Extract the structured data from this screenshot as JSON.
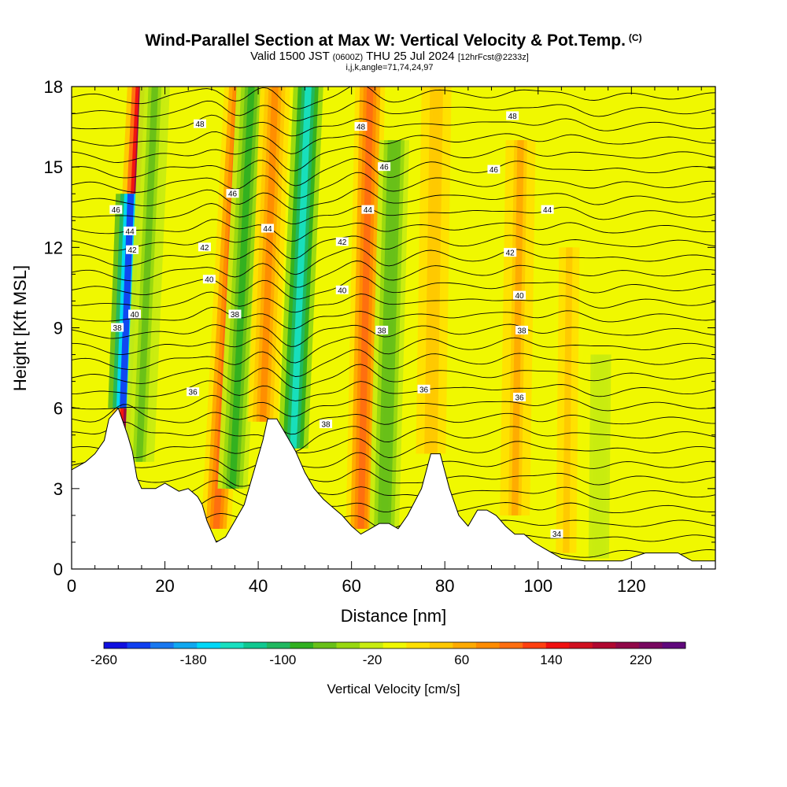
{
  "header": {
    "title": "Wind-Parallel Section at Max W: Vertical Velocity & Pot.Temp.",
    "copyright": "(C)",
    "valid_prefix": "Valid 1500 JST",
    "valid_utc": "(0600Z)",
    "valid_date": "THU 25 Jul 2024",
    "forecast": "[12hrFcst@2233z]",
    "indices": "i,j,k,angle=71,74,24,97"
  },
  "chart_data": {
    "type": "heatmap",
    "title": "Wind-Parallel Section at Max W: Vertical Velocity & Pot.Temp.",
    "xlabel": "Distance [nm]",
    "ylabel": "Height [Kft MSL]",
    "xlim": [
      0,
      138
    ],
    "ylim": [
      0,
      18
    ],
    "xticks": [
      0,
      20,
      40,
      60,
      80,
      100,
      120
    ],
    "yticks": [
      0,
      3,
      6,
      9,
      12,
      15,
      18
    ],
    "colorbar": {
      "label": "Vertical Velocity [cm/s]",
      "ticks": [
        -260,
        -180,
        -100,
        -20,
        60,
        140,
        220
      ],
      "range": [
        -260,
        260
      ],
      "colors": [
        "#1010e0",
        "#1040f0",
        "#1878f0",
        "#10a8f0",
        "#00d8f8",
        "#18e0c0",
        "#10c890",
        "#20b860",
        "#30b020",
        "#68c018",
        "#98d810",
        "#c8ec10",
        "#f0f800",
        "#ffe000",
        "#ffc800",
        "#ffaa00",
        "#ff8c00",
        "#ff6e10",
        "#ff4010",
        "#f01010",
        "#d01020",
        "#b00830",
        "#900848",
        "#780860",
        "#60087c"
      ]
    },
    "terrain_kft": [
      [
        0,
        3.7
      ],
      [
        3,
        4.0
      ],
      [
        5,
        4.3
      ],
      [
        7,
        4.8
      ],
      [
        8,
        5.6
      ],
      [
        10,
        6.0
      ],
      [
        12,
        5.0
      ],
      [
        13,
        4.4
      ],
      [
        14,
        3.4
      ],
      [
        15,
        3.0
      ],
      [
        18,
        3.0
      ],
      [
        20,
        3.2
      ],
      [
        23,
        2.9
      ],
      [
        25,
        3.0
      ],
      [
        27,
        2.7
      ],
      [
        28,
        2.4
      ],
      [
        29,
        1.8
      ],
      [
        30,
        1.4
      ],
      [
        31,
        1.0
      ],
      [
        33,
        1.2
      ],
      [
        35,
        1.8
      ],
      [
        37,
        2.4
      ],
      [
        39,
        3.6
      ],
      [
        41,
        4.8
      ],
      [
        42,
        5.6
      ],
      [
        44,
        5.6
      ],
      [
        46,
        5.0
      ],
      [
        48,
        4.4
      ],
      [
        50,
        3.6
      ],
      [
        52,
        3.0
      ],
      [
        54,
        2.6
      ],
      [
        56,
        2.3
      ],
      [
        58,
        2.0
      ],
      [
        60,
        1.6
      ],
      [
        62,
        1.3
      ],
      [
        64,
        1.5
      ],
      [
        66,
        1.7
      ],
      [
        68,
        1.7
      ],
      [
        70,
        1.5
      ],
      [
        72,
        2.0
      ],
      [
        75,
        3.0
      ],
      [
        77,
        4.3
      ],
      [
        79,
        4.3
      ],
      [
        81,
        3.0
      ],
      [
        83,
        2.0
      ],
      [
        85,
        1.6
      ],
      [
        87,
        2.2
      ],
      [
        89,
        2.2
      ],
      [
        91,
        2.0
      ],
      [
        93,
        1.6
      ],
      [
        95,
        1.3
      ],
      [
        97,
        1.3
      ],
      [
        99,
        1.0
      ],
      [
        101,
        0.8
      ],
      [
        103,
        0.6
      ],
      [
        105,
        0.4
      ],
      [
        110,
        0.3
      ],
      [
        118,
        0.3
      ],
      [
        123,
        0.6
      ],
      [
        130,
        0.6
      ],
      [
        133,
        0.3
      ],
      [
        138,
        0.3
      ]
    ],
    "vertical_velocity_cells_cm_s": [
      {
        "x": 11.5,
        "y_top": 18,
        "y_bottom": 4.5,
        "w": 200,
        "tilt": -0.45
      },
      {
        "x": 11.0,
        "y_top": 14,
        "y_bottom": 6.0,
        "w": -220,
        "tilt": -0.35
      },
      {
        "x": 14.5,
        "y_top": 18,
        "y_bottom": 4.0,
        "w": -60,
        "tilt": -0.4
      },
      {
        "x": 31.0,
        "y_top": 18,
        "y_bottom": 1.5,
        "w": 110,
        "tilt": -0.5
      },
      {
        "x": 34.5,
        "y_top": 18,
        "y_bottom": 3.0,
        "w": -80,
        "tilt": -0.45
      },
      {
        "x": 41.0,
        "y_top": 18,
        "y_bottom": 5.5,
        "w": 90,
        "tilt": -0.35
      },
      {
        "x": 47.5,
        "y_top": 18,
        "y_bottom": 4.5,
        "w": -150,
        "tilt": -0.4
      },
      {
        "x": 62.0,
        "y_top": 18,
        "y_bottom": 1.5,
        "w": 110,
        "tilt": -0.2
      },
      {
        "x": 67.0,
        "y_top": 16,
        "y_bottom": 1.5,
        "w": -70,
        "tilt": -0.25
      },
      {
        "x": 77.0,
        "y_top": 18,
        "y_bottom": 4.3,
        "w": 50,
        "tilt": -0.15
      },
      {
        "x": 95.0,
        "y_top": 16,
        "y_bottom": 2.0,
        "w": 60,
        "tilt": -0.15
      },
      {
        "x": 106.0,
        "y_top": 12,
        "y_bottom": 0.6,
        "w": 40,
        "tilt": -0.1
      },
      {
        "x": 113.0,
        "y_top": 8,
        "y_bottom": 0.4,
        "w": -30,
        "tilt": -0.1
      }
    ],
    "potential_temperature_contours": {
      "label_values": [
        34,
        36,
        38,
        40,
        42,
        44,
        46,
        48
      ],
      "labels": [
        {
          "text": "48",
          "x": 27.5,
          "y": 16.6
        },
        {
          "text": "48",
          "x": 62.0,
          "y": 16.5
        },
        {
          "text": "48",
          "x": 94.5,
          "y": 16.9
        },
        {
          "text": "46",
          "x": 34.5,
          "y": 14.0
        },
        {
          "text": "46",
          "x": 67.0,
          "y": 15.0
        },
        {
          "text": "46",
          "x": 90.5,
          "y": 14.9
        },
        {
          "text": "46",
          "x": 9.5,
          "y": 13.4
        },
        {
          "text": "44",
          "x": 12.5,
          "y": 12.6
        },
        {
          "text": "44",
          "x": 42.0,
          "y": 12.7
        },
        {
          "text": "44",
          "x": 63.5,
          "y": 13.4
        },
        {
          "text": "44",
          "x": 102.0,
          "y": 13.4
        },
        {
          "text": "42",
          "x": 13.0,
          "y": 11.9
        },
        {
          "text": "42",
          "x": 28.5,
          "y": 12.0
        },
        {
          "text": "42",
          "x": 58.0,
          "y": 12.2
        },
        {
          "text": "42",
          "x": 94.0,
          "y": 11.8
        },
        {
          "text": "40",
          "x": 29.5,
          "y": 10.8
        },
        {
          "text": "40",
          "x": 58.0,
          "y": 10.4
        },
        {
          "text": "40",
          "x": 13.5,
          "y": 9.5
        },
        {
          "text": "40",
          "x": 96.0,
          "y": 10.2
        },
        {
          "text": "38",
          "x": 35.0,
          "y": 9.5
        },
        {
          "text": "38",
          "x": 66.5,
          "y": 8.9
        },
        {
          "text": "38",
          "x": 9.8,
          "y": 9.0
        },
        {
          "text": "38",
          "x": 96.5,
          "y": 8.9
        },
        {
          "text": "38",
          "x": 54.5,
          "y": 5.4
        },
        {
          "text": "36",
          "x": 26.0,
          "y": 6.6
        },
        {
          "text": "36",
          "x": 75.5,
          "y": 6.7
        },
        {
          "text": "36",
          "x": 96.0,
          "y": 6.4
        },
        {
          "text": "34",
          "x": 104.0,
          "y": 1.3
        }
      ]
    }
  }
}
